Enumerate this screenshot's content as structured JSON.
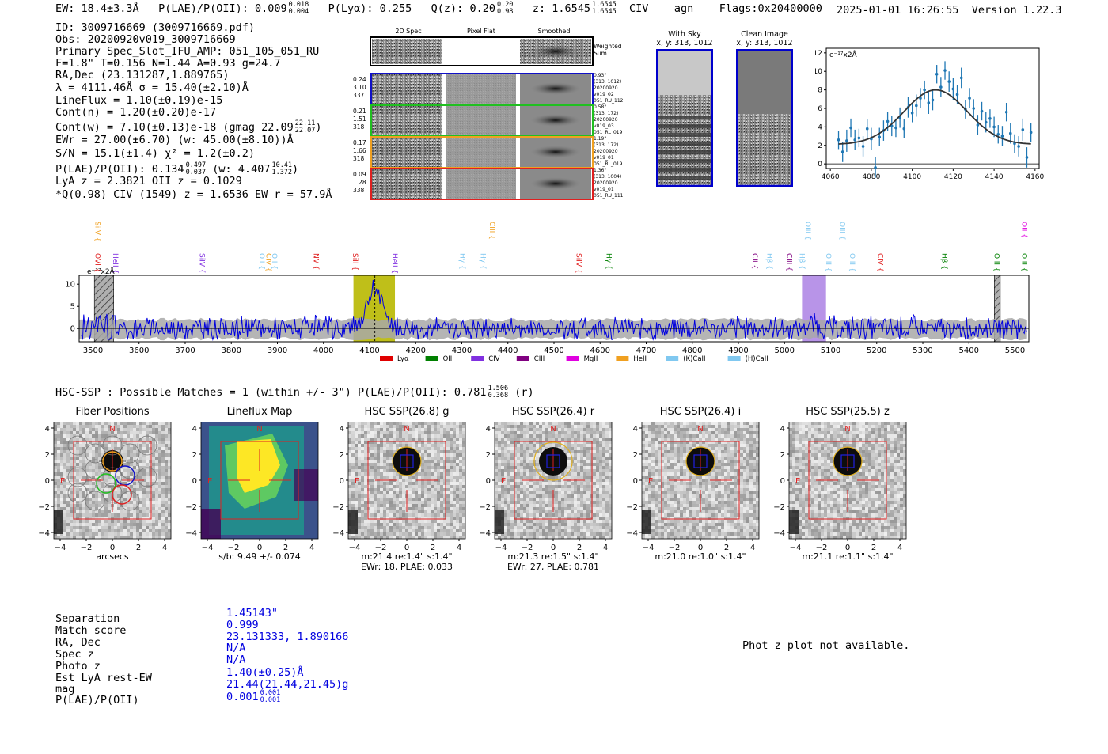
{
  "header": {
    "ew": "EW: 18.4±3.3Å",
    "plae_label": "P(LAE)/P(OII): 0.009",
    "plae_hi": "0.018",
    "plae_lo": "0.004",
    "plya_label": "P(Lyα): 0.255",
    "qz_label": "Q(z): 0.20",
    "qz_hi": "0.20",
    "qz_lo": "0.98",
    "z_label": "z: 1.6545",
    "z_hi": "1.6545",
    "z_lo": "1.6545",
    "line": "CIV",
    "cls": "agn",
    "flags": "Flags:0x20400000",
    "datetime": "2025-01-01 16:26:55",
    "version": "Version 1.22.3"
  },
  "info": {
    "id": "ID: 3009716669 (3009716669.pdf)",
    "obs": "Obs: 20200920v019_3009716669",
    "primary": "Primary Spec_Slot_IFU_AMP: 051_105_051_RU",
    "fparams": "F=1.8\"  T=0.156  N=1.44  A=0.93  g=24.7",
    "radec": "RA,Dec (23.131287,1.889765)",
    "lambda": "λ = 4111.46Å  σ = 15.40(±2.10)Å",
    "lineflux": "LineFlux = 1.10(±0.19)e-15",
    "contn": "Cont(n) = 1.20(±0.20)e-17",
    "contw": "Cont(w) = 7.10(±0.13)e-18 (gmag 22.09",
    "contw_hi": "22.11",
    "contw_lo": "22.07",
    "contw_end": ")",
    "ewr": "EWr = 27.00(±6.70) (w: 45.00(±8.10))Å",
    "sn": "S/N = 15.1(±1.4)  χ² = 1.2(±0.2)",
    "plae": "P(LAE)/P(OII): 0.134",
    "plae_hi": "0.497",
    "plae_lo": "0.037",
    "plae_w": "(w: 4.407",
    "plae_w_hi": "10.41",
    "plae_w_lo": "1.372",
    "plae_w_end": ")",
    "lya": "LyA z = 2.3821  OII z = 0.1029",
    "qciv": "*Q(0.98) CIV (1549) z = 1.6536  EW r = 57.9Å"
  },
  "cutouts": {
    "col_2d": "2D Spec",
    "col_flat": "Pixel Flat",
    "col_smooth": "Smoothed",
    "weighted": "Weighted",
    "sum": "Sum",
    "rows": [
      {
        "vals": [
          "0.24",
          "3.10",
          "337"
        ],
        "meta": [
          "0.93\"",
          "(313, 1012)",
          "20200920",
          "v019_02",
          "051_RU_112"
        ],
        "color": "#1010c8"
      },
      {
        "vals": [
          "0.21",
          "1.51",
          "318"
        ],
        "meta": [
          "0.58\"",
          "(313, 172)",
          "20200920",
          "v019_03",
          "051_RL_019"
        ],
        "color": "#20c020"
      },
      {
        "vals": [
          "0.17",
          "1.66",
          "318"
        ],
        "meta": [
          "1.19\"",
          "(313, 172)",
          "20200920",
          "v019_01",
          "051_RL_019"
        ],
        "color": "#f0a020"
      },
      {
        "vals": [
          "0.09",
          "1.28",
          "338"
        ],
        "meta": [
          "1.36\"",
          "(313, 1004)",
          "20200920",
          "v019_01",
          "051_RU_111"
        ],
        "color": "#e02020"
      }
    ]
  },
  "sky": {
    "with_sky": "With Sky",
    "with_sky_xy": "x, y: 313, 1012",
    "clean": "Clean Image",
    "clean_xy": "x, y: 313, 1012"
  },
  "spectrum_lines": {
    "upper": [
      {
        "label": "SiIV",
        "color": "#f0a020",
        "x": 1393
      },
      {
        "label": "CIII",
        "color": "#f0a020",
        "x": 1909
      },
      {
        "label": "OIII",
        "color": "#80c8f0",
        "x": 2322
      },
      {
        "label": "OIII",
        "color": "#80c8f0",
        "x": 2367
      },
      {
        "label": "OII",
        "color": "#e000e0",
        "x": 2605
      }
    ],
    "lower": [
      {
        "label": "OVI",
        "color": "#e02020",
        "x": 1326
      },
      {
        "label": "HeII",
        "color": "#8030e0",
        "x": 1360
      },
      {
        "label": "SiIV",
        "color": "#8030e0",
        "x": 1526
      },
      {
        "label": "OII",
        "color": "#80c8f0",
        "x": 1640
      },
      {
        "label": "CIV",
        "color": "#f0a020",
        "x": 1653
      },
      {
        "label": "OII",
        "color": "#80c8f0",
        "x": 1664
      },
      {
        "label": "NV",
        "color": "#e02020",
        "x": 1744
      },
      {
        "label": "SiII",
        "color": "#e02020",
        "x": 1819
      },
      {
        "label": "HeII",
        "color": "#8030e0",
        "x": 1894
      },
      {
        "label": "Hγ",
        "color": "#80c8f0",
        "x": 2024
      },
      {
        "label": "Hγ",
        "color": "#80c8f0",
        "x": 2063
      },
      {
        "label": "SiIV",
        "color": "#e02020",
        "x": 2246
      },
      {
        "label": "Hγ",
        "color": "#008000",
        "x": 2304
      },
      {
        "label": "CII",
        "color": "#800080",
        "x": 2583
      },
      {
        "label": "Hβ",
        "color": "#80c8f0",
        "x": 2611
      },
      {
        "label": "CIII",
        "color": "#800080",
        "x": 2649
      },
      {
        "label": "Hβ",
        "color": "#80c8f0",
        "x": 2673
      },
      {
        "label": "OIII",
        "color": "#80c8f0",
        "x": 2724
      },
      {
        "label": "OIII",
        "color": "#80c8f0",
        "x": 2769
      },
      {
        "label": "CIV",
        "color": "#e02020",
        "x": 2823
      },
      {
        "label": "Hβ",
        "color": "#008000",
        "x": 2945
      },
      {
        "label": "OIII",
        "color": "#008000",
        "x": 3045
      },
      {
        "label": "OIII",
        "color": "#008000",
        "x": 3098
      }
    ]
  },
  "legend": [
    {
      "label": "Lyα",
      "color": "#e00000"
    },
    {
      "label": "OII",
      "color": "#008000"
    },
    {
      "label": "CIV",
      "color": "#8030e0"
    },
    {
      "label": "CIII",
      "color": "#800080"
    },
    {
      "label": "MgII",
      "color": "#e000e0"
    },
    {
      "label": "HeII",
      "color": "#f0a020"
    },
    {
      "label": "(K)CaII",
      "color": "#80c8f0"
    },
    {
      "label": "(H)CaII",
      "color": "#80c8f0"
    }
  ],
  "chart_data": [
    {
      "type": "scatter",
      "name": "line-fit",
      "ylabel": "e⁻¹⁷x2Å",
      "xlim": [
        4058,
        4162
      ],
      "ylim": [
        -0.5,
        12.5
      ],
      "xticks": [
        4060,
        4080,
        4100,
        4120,
        4140,
        4160
      ],
      "yticks": [
        0,
        2,
        4,
        6,
        8,
        10,
        12
      ],
      "fit": {
        "center": 4111.46,
        "sigma": 15.4,
        "amp": 5.9,
        "base": 2.1
      },
      "x": [
        4064,
        4066,
        4068,
        4070,
        4072,
        4074,
        4076,
        4078,
        4080,
        4082,
        4084,
        4086,
        4088,
        4090,
        4092,
        4094,
        4096,
        4098,
        4100,
        4102,
        4104,
        4106,
        4108,
        4110,
        4112,
        4114,
        4116,
        4118,
        4120,
        4122,
        4124,
        4126,
        4128,
        4130,
        4132,
        4134,
        4136,
        4138,
        4140,
        4142,
        4144,
        4146,
        4148,
        4150,
        4152,
        4154,
        4156,
        4158
      ],
      "y": [
        2.6,
        1.3,
        2.5,
        3.9,
        2.6,
        2.8,
        1.9,
        3.8,
        2.7,
        -0.4,
        2.9,
        3.6,
        4.6,
        4.1,
        3.9,
        5.0,
        3.8,
        6.1,
        5.5,
        6.3,
        7.1,
        8.0,
        6.6,
        6.9,
        9.7,
        8.3,
        10.1,
        8.9,
        8.1,
        7.5,
        9.3,
        5.9,
        7.1,
        6.0,
        4.2,
        5.7,
        4.5,
        4.9,
        4.0,
        3.2,
        3.0,
        5.6,
        3.3,
        2.2,
        1.9,
        3.7,
        0.7,
        3.4
      ],
      "yerr": [
        1.0,
        1.1,
        1.2,
        1.0,
        1.1,
        1.0,
        1.1,
        1.0,
        1.2,
        1.1,
        1.0,
        1.1,
        1.0,
        1.1,
        1.0,
        1.1,
        1.0,
        1.1,
        1.0,
        1.2,
        1.1,
        1.0,
        1.2,
        1.1,
        1.0,
        1.1,
        1.0,
        1.1,
        1.2,
        1.0,
        1.1,
        1.0,
        1.1,
        1.0,
        1.1,
        1.0,
        1.1,
        1.0,
        1.1,
        1.0,
        1.1,
        1.0,
        1.1,
        1.0,
        1.1,
        1.2,
        1.1,
        1.0
      ]
    },
    {
      "type": "line",
      "name": "full-spectrum",
      "ylabel": "e⁻¹⁷x2Å",
      "xlim": [
        3470,
        5530
      ],
      "ylim": [
        -3,
        12
      ],
      "xticks": [
        3500,
        3600,
        3700,
        3800,
        3900,
        4000,
        4100,
        4200,
        4300,
        4400,
        4500,
        4600,
        4700,
        4800,
        4900,
        5000,
        5100,
        5200,
        5300,
        5400,
        5500
      ],
      "yticks": [
        0,
        5,
        10
      ],
      "highlight_primary": [
        4065,
        4155
      ],
      "highlight_secondary": [
        5038,
        5090
      ],
      "hatched": [
        [
          3503,
          3545
        ],
        [
          5455,
          5468
        ]
      ],
      "peak_line": 4111.46
    }
  ],
  "hsc": {
    "title": "HSC-SSP : Possible Matches = 1 (within +/- 3\")  P(LAE)/P(OII): 0.781",
    "title_hi": "1.506",
    "title_lo": "0.368",
    "title_end": "(r)",
    "panels": [
      {
        "title": "Fiber Positions",
        "sub1": "arcsecs",
        "sub2": ""
      },
      {
        "title": "Lineflux Map",
        "sub1": "s/b: 9.49 +/- 0.074",
        "sub2": ""
      },
      {
        "title": "HSC SSP(26.8) g",
        "sub1": "m:21.4  re:1.4\"  s:1.4\"",
        "sub2": "EWr: 18, PLAE: 0.033"
      },
      {
        "title": "HSC SSP(26.4) r",
        "sub1": "m:21.3  re:1.5\"  s:1.4\"",
        "sub2": "EWr: 27, PLAE: 0.781"
      },
      {
        "title": "HSC SSP(26.4) i",
        "sub1": "m:21.0  re:1.0\"  s:1.4\"",
        "sub2": ""
      },
      {
        "title": "HSC SSP(25.5) z",
        "sub1": "m:21.1  re:1.1\"  s:1.4\"",
        "sub2": ""
      }
    ],
    "ticks": [
      "4",
      "2",
      "0",
      "−2",
      "−4"
    ],
    "xticks": [
      "−4",
      "−2",
      "0",
      "2",
      "4"
    ],
    "north": "N",
    "east": "E"
  },
  "match": {
    "keys": [
      "Separation",
      "Match score",
      "RA, Dec",
      "Spec z",
      "Photo z",
      "Est LyA rest-EW",
      "mag",
      "P(LAE)/P(OII)"
    ],
    "vals": [
      "1.45143\"",
      "0.999",
      "23.131333, 1.890166",
      "N/A",
      "N/A",
      "1.40(±0.25)Å",
      "21.44(21.44,21.45)g",
      "0.001"
    ],
    "plae_hi": "0.001",
    "plae_lo": "0.001",
    "photz_msg": "Phot z plot not available."
  }
}
